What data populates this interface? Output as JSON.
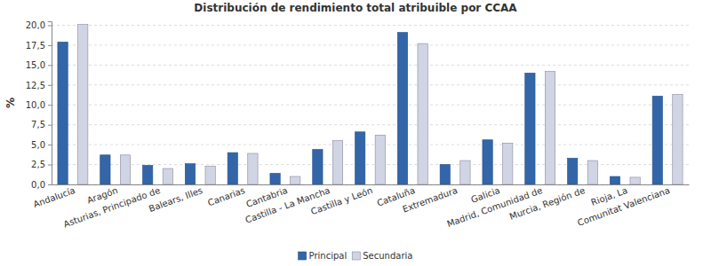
{
  "chart_data": {
    "type": "bar",
    "title": "Distribución de rendimiento total atribuible por CCAA",
    "y_label": "%",
    "categories": [
      "Andalucía",
      "Aragón",
      "Asturias, Principado de",
      "Balears, Illes",
      "Canarias",
      "Cantabria",
      "Castilla - La Mancha",
      "Castilla y León",
      "Cataluña",
      "Extremadura",
      "Galicia",
      "Madrid, Comunidad de",
      "Murcia, Región de",
      "Rioja, La",
      "Comunitat Valenciana"
    ],
    "series": [
      {
        "name": "Principal",
        "color": "#3366a8",
        "values": [
          17.9,
          3.7,
          2.4,
          2.6,
          4.0,
          1.4,
          4.4,
          6.6,
          19.1,
          2.5,
          5.6,
          14.0,
          3.3,
          1.0,
          11.1
        ]
      },
      {
        "name": "Secundaria",
        "color": "#d0d4e4",
        "values": [
          20.1,
          3.7,
          2.0,
          2.3,
          3.9,
          1.0,
          5.5,
          6.2,
          17.7,
          3.0,
          5.2,
          14.2,
          3.0,
          0.9,
          11.3
        ]
      }
    ],
    "ylim": [
      0,
      20.5
    ],
    "yticks": [
      {
        "value": 0,
        "label": "0,0"
      },
      {
        "value": 2.5,
        "label": "2,5"
      },
      {
        "value": 5,
        "label": "5,0"
      },
      {
        "value": 7.5,
        "label": "7,5"
      },
      {
        "value": 10,
        "label": "10,0"
      },
      {
        "value": 12.5,
        "label": "12,5"
      },
      {
        "value": 15,
        "label": "15,0"
      },
      {
        "value": 17.5,
        "label": "17,5"
      },
      {
        "value": 20,
        "label": "20,0"
      }
    ],
    "grid": true,
    "legend": "bottom"
  }
}
